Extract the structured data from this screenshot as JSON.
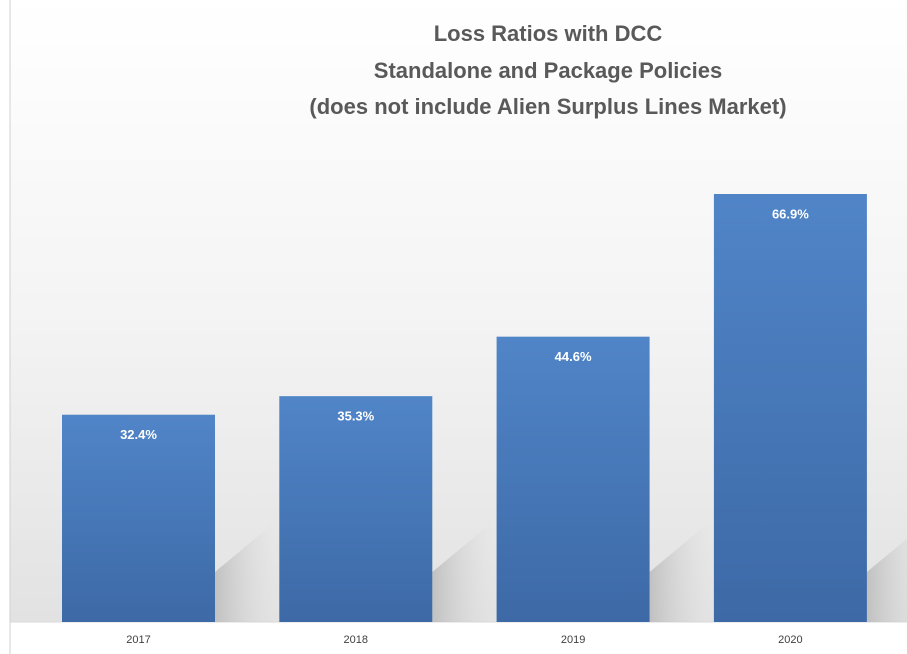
{
  "chart_data": {
    "type": "bar",
    "title": "Loss Ratios with DCC",
    "subtitle": [
      "Standalone and Package Policies",
      "(does not include Alien Surplus Lines Market)"
    ],
    "categories": [
      "2017",
      "2018",
      "2019",
      "2020"
    ],
    "values": [
      32.4,
      35.3,
      44.6,
      66.9
    ],
    "value_labels": [
      "32.4%",
      "35.3%",
      "44.6%",
      "66.9%"
    ],
    "color": "#4a7bbd"
  }
}
